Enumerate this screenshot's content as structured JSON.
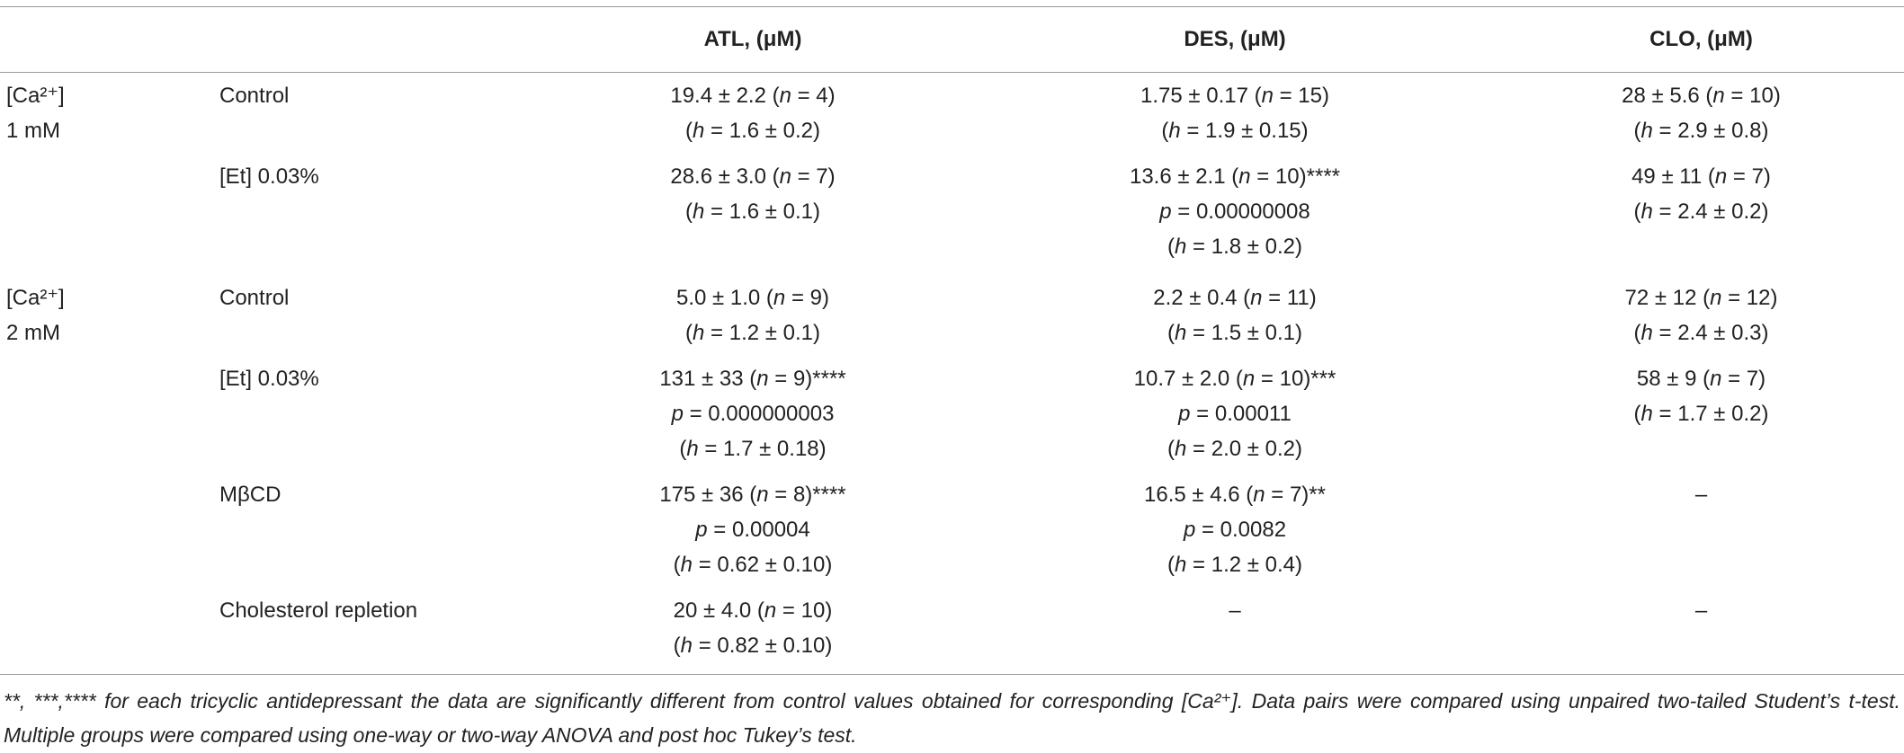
{
  "table": {
    "header": [
      "ATL, (μM)",
      "DES, (μM)",
      "CLO, (μM)"
    ],
    "groups": [
      {
        "label": [
          "[Ca²⁺]",
          "1 mM"
        ],
        "rows": [
          {
            "condition": "Control",
            "cells": [
              [
                "19.4 ± 2.2 (n = 4)",
                "(h = 1.6 ± 0.2)"
              ],
              [
                "1.75 ± 0.17 (n = 15)",
                "(h = 1.9 ± 0.15)"
              ],
              [
                "28 ± 5.6 (n = 10)",
                "(h = 2.9 ± 0.8)"
              ]
            ]
          },
          {
            "condition": "[Et] 0.03%",
            "cells": [
              [
                "28.6 ± 3.0 (n = 7)",
                "(h = 1.6 ± 0.1)"
              ],
              [
                "13.6 ± 2.1 (n = 10)****",
                "p = 0.00000008",
                "(h = 1.8 ± 0.2)"
              ],
              [
                "49 ± 11 (n = 7)",
                "(h = 2.4 ± 0.2)"
              ]
            ]
          }
        ]
      },
      {
        "label": [
          "[Ca²⁺]",
          "2 mM"
        ],
        "rows": [
          {
            "condition": "Control",
            "cells": [
              [
                "5.0 ± 1.0 (n = 9)",
                "(h = 1.2 ± 0.1)"
              ],
              [
                "2.2 ± 0.4 (n = 11)",
                "(h = 1.5 ± 0.1)"
              ],
              [
                "72 ± 12 (n = 12)",
                "(h = 2.4 ± 0.3)"
              ]
            ]
          },
          {
            "condition": "[Et] 0.03%",
            "cells": [
              [
                "131 ± 33 (n = 9)****",
                "p = 0.000000003",
                "(h = 1.7 ± 0.18)"
              ],
              [
                "10.7 ± 2.0 (n = 10)***",
                "p = 0.00011",
                "(h = 2.0 ± 0.2)"
              ],
              [
                "58 ± 9 (n = 7)",
                "(h = 1.7 ± 0.2)"
              ]
            ]
          },
          {
            "condition": "MβCD",
            "cells": [
              [
                "175 ± 36 (n = 8)****",
                "p = 0.00004",
                "(h = 0.62 ± 0.10)"
              ],
              [
                "16.5 ± 4.6 (n = 7)**",
                "p = 0.0082",
                "(h = 1.2 ± 0.4)"
              ],
              [
                "–"
              ]
            ]
          },
          {
            "condition": "Cholesterol repletion",
            "cells": [
              [
                "20 ± 4.0 (n = 10)",
                "(h = 0.82 ± 0.10)"
              ],
              [
                "–"
              ],
              [
                "–"
              ]
            ]
          }
        ]
      }
    ],
    "footnote": "**, ***,**** for each tricyclic antidepressant the data are significantly different from control values obtained for corresponding [Ca²⁺]. Data pairs were compared using unpaired two-tailed Student’s t-test. Multiple groups were compared using one-way or two-way ANOVA and post hoc Tukey’s test."
  }
}
